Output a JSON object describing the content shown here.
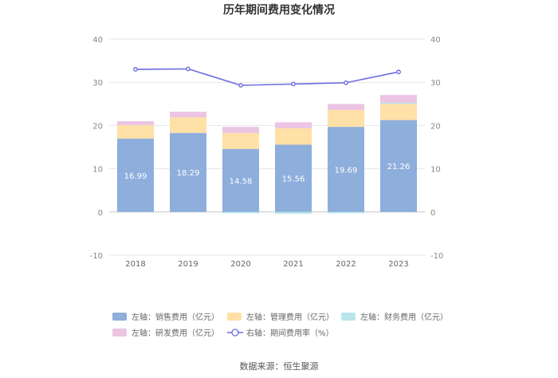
{
  "chart_data": {
    "type": "bar",
    "title": "历年期间费用变化情况",
    "categories": [
      "2018",
      "2019",
      "2020",
      "2021",
      "2022",
      "2023"
    ],
    "series": [
      {
        "name": "左轴：销售费用（亿元）",
        "axis": "left",
        "kind": "stacked-bar",
        "color": "#8EAEDC",
        "values": [
          16.99,
          18.29,
          14.58,
          15.56,
          19.69,
          21.26
        ],
        "show_labels": true
      },
      {
        "name": "左轴：管理费用（亿元）",
        "axis": "left",
        "kind": "stacked-bar",
        "color": "#FFE0A6",
        "values": [
          3.1,
          3.6,
          3.7,
          3.8,
          3.9,
          3.9
        ]
      },
      {
        "name": "左轴：财务费用（亿元）",
        "axis": "left",
        "kind": "stacked-bar",
        "color": "#B8E6EA",
        "values": [
          0.0,
          0.0,
          -0.3,
          -0.4,
          -0.3,
          0.1
        ]
      },
      {
        "name": "左轴：研发费用（亿元）",
        "axis": "left",
        "kind": "stacked-bar",
        "color": "#EBC5E3",
        "values": [
          0.9,
          1.3,
          1.4,
          1.4,
          1.4,
          1.8
        ]
      },
      {
        "name": "右轴：期间费用率（%）",
        "axis": "right",
        "kind": "line",
        "color": "#6B6BE0",
        "values": [
          33.0,
          33.1,
          29.3,
          29.6,
          29.9,
          32.4
        ]
      }
    ],
    "y_left": {
      "min": -10,
      "max": 40,
      "ticks": [
        -10,
        0,
        10,
        20,
        30,
        40
      ]
    },
    "y_right": {
      "min": -10,
      "max": 40,
      "ticks": [
        -10,
        0,
        10,
        20,
        30,
        40
      ]
    },
    "legend_position": "bottom",
    "source": "数据来源：恒生聚源"
  }
}
